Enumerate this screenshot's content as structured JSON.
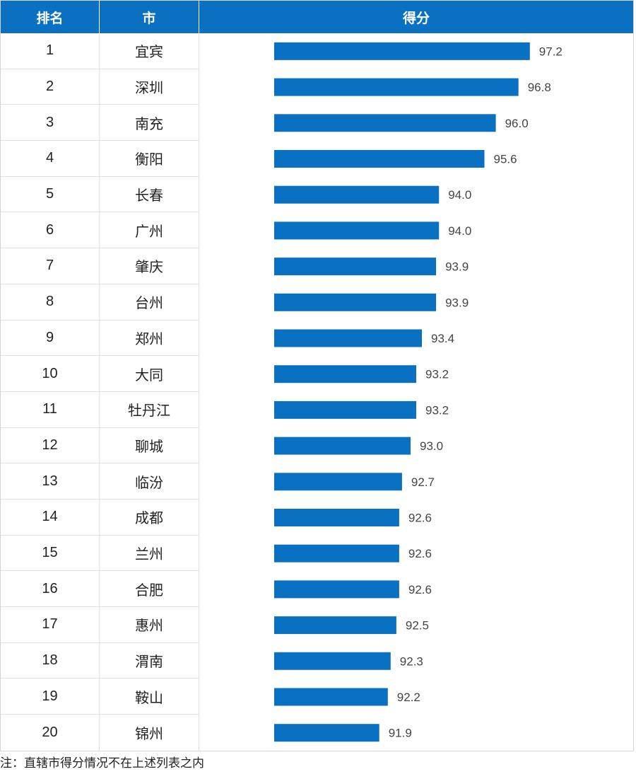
{
  "header": {
    "rank": "排名",
    "city": "市",
    "score": "得分"
  },
  "note": "注：直辖市得分情况不在上述列表之内",
  "colors": {
    "header_bg": "#0a70c2",
    "bar": "#0a70c2"
  },
  "chart_data": {
    "type": "bar",
    "orientation": "horizontal",
    "title": "",
    "categories": [
      "宜宾",
      "深圳",
      "南充",
      "衡阳",
      "长春",
      "广州",
      "肇庆",
      "台州",
      "郑州",
      "大同",
      "牡丹江",
      "聊城",
      "临汾",
      "成都",
      "兰州",
      "合肥",
      "惠州",
      "渭南",
      "鞍山",
      "锦州"
    ],
    "ranks": [
      "1",
      "2",
      "3",
      "4",
      "5",
      "6",
      "7",
      "8",
      "9",
      "10",
      "11",
      "12",
      "13",
      "14",
      "15",
      "16",
      "17",
      "18",
      "19",
      "20"
    ],
    "values": [
      97.2,
      96.8,
      96.0,
      95.6,
      94.0,
      94.0,
      93.9,
      93.9,
      93.4,
      93.2,
      93.2,
      93.0,
      92.7,
      92.6,
      92.6,
      92.6,
      92.5,
      92.3,
      92.2,
      91.9
    ],
    "labels": [
      "97.2",
      "96.8",
      "96.0",
      "95.6",
      "94.0",
      "94.0",
      "93.9",
      "93.9",
      "93.4",
      "93.2",
      "93.2",
      "93.0",
      "92.7",
      "92.6",
      "92.6",
      "92.6",
      "92.5",
      "92.3",
      "92.2",
      "91.9"
    ],
    "xlim": [
      88.2,
      97.2
    ]
  }
}
